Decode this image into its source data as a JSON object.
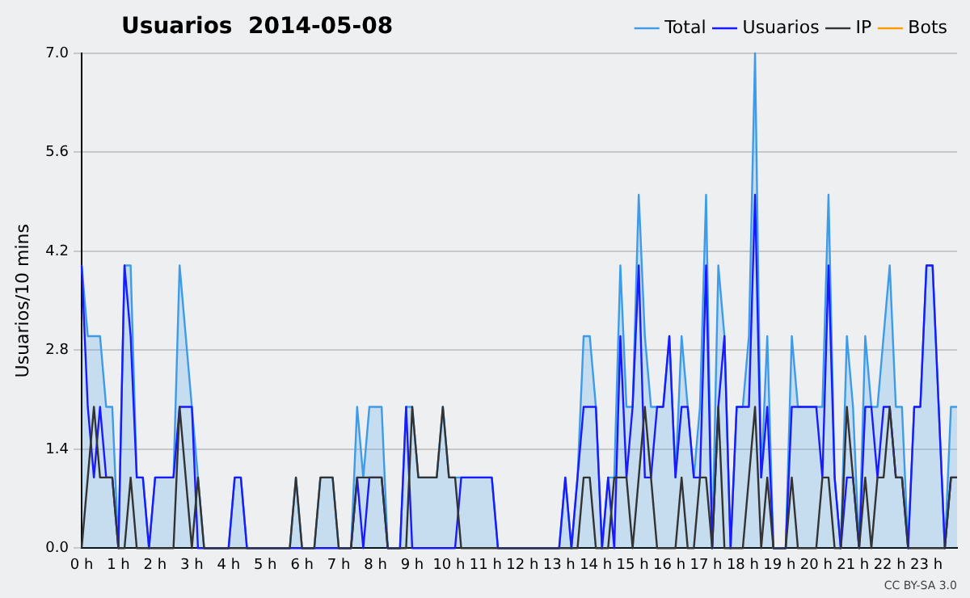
{
  "chart_data": {
    "type": "line",
    "title": "Usuarios  2014-05-08",
    "ylabel": "Usuarios/10 mins",
    "annotations": [
      "CC BY-SA 3.0"
    ],
    "categories": [
      "0 h",
      null,
      null,
      null,
      null,
      null,
      "1 h",
      null,
      null,
      null,
      null,
      null,
      "2 h",
      null,
      null,
      null,
      null,
      null,
      "3 h",
      null,
      null,
      null,
      null,
      null,
      "4 h",
      null,
      null,
      null,
      null,
      null,
      "5 h",
      null,
      null,
      null,
      null,
      null,
      "6 h",
      null,
      null,
      null,
      null,
      null,
      "7 h",
      null,
      null,
      null,
      null,
      null,
      "8 h",
      null,
      null,
      null,
      null,
      null,
      "9 h",
      null,
      null,
      null,
      null,
      null,
      "10 h",
      null,
      null,
      null,
      null,
      null,
      "11 h",
      null,
      null,
      null,
      null,
      null,
      "12 h",
      null,
      null,
      null,
      null,
      null,
      "13 h",
      null,
      null,
      null,
      null,
      null,
      "14 h",
      null,
      null,
      null,
      null,
      null,
      "15 h",
      null,
      null,
      null,
      null,
      null,
      "16 h",
      null,
      null,
      null,
      null,
      null,
      "17 h",
      null,
      null,
      null,
      null,
      null,
      "18 h",
      null,
      null,
      null,
      null,
      null,
      "19 h",
      null,
      null,
      null,
      null,
      null,
      "20 h",
      null,
      null,
      null,
      null,
      null,
      "21 h",
      null,
      null,
      null,
      null,
      null,
      "22 h",
      null,
      null,
      null,
      null,
      null,
      "23 h",
      null,
      null,
      null,
      null,
      null
    ],
    "series": [
      {
        "name": "Total",
        "type": "area",
        "color": "#3d9be9",
        "values": [
          4,
          3,
          3,
          3,
          2,
          2,
          0,
          4,
          4,
          1,
          1,
          0,
          1,
          1,
          1,
          1,
          4,
          3,
          2,
          1,
          0,
          0,
          0,
          0,
          0,
          1,
          1,
          0,
          0,
          0,
          0,
          0,
          0,
          0,
          0,
          1,
          0,
          0,
          0,
          1,
          1,
          1,
          0,
          0,
          0,
          2,
          1,
          2,
          2,
          2,
          0,
          0,
          0,
          2,
          2,
          1,
          1,
          1,
          1,
          2,
          1,
          1,
          1,
          1,
          1,
          1,
          1,
          1,
          0,
          0,
          0,
          0,
          0,
          0,
          0,
          0,
          0,
          0,
          0,
          1,
          0,
          1,
          3,
          3,
          2,
          0,
          1,
          1,
          4,
          2,
          2,
          5,
          3,
          2,
          2,
          2,
          3,
          1,
          3,
          2,
          1,
          2,
          5,
          0,
          4,
          3,
          0,
          2,
          2,
          3,
          7,
          1,
          3,
          0,
          0,
          0,
          3,
          2,
          2,
          2,
          2,
          2,
          5,
          1,
          0,
          3,
          2,
          0,
          3,
          2,
          2,
          3,
          4,
          2,
          2,
          0,
          2,
          2,
          4,
          4,
          2,
          0,
          2,
          2
        ]
      },
      {
        "name": "Usuarios",
        "type": "line",
        "color": "#1a1aff",
        "values": [
          4,
          2,
          1,
          2,
          1,
          1,
          0,
          4,
          3,
          1,
          1,
          0,
          1,
          1,
          1,
          1,
          2,
          2,
          2,
          0,
          0,
          0,
          0,
          0,
          0,
          1,
          1,
          0,
          0,
          0,
          0,
          0,
          0,
          0,
          0,
          0,
          0,
          0,
          0,
          0,
          0,
          0,
          0,
          0,
          0,
          1,
          0,
          1,
          1,
          1,
          0,
          0,
          0,
          2,
          0,
          0,
          0,
          0,
          0,
          0,
          0,
          0,
          1,
          1,
          1,
          1,
          1,
          1,
          0,
          0,
          0,
          0,
          0,
          0,
          0,
          0,
          0,
          0,
          0,
          1,
          0,
          1,
          2,
          2,
          2,
          0,
          1,
          0,
          3,
          1,
          2,
          4,
          1,
          1,
          2,
          2,
          3,
          1,
          2,
          2,
          1,
          1,
          4,
          0,
          2,
          3,
          0,
          2,
          2,
          2,
          5,
          1,
          2,
          0,
          0,
          0,
          2,
          2,
          2,
          2,
          2,
          1,
          4,
          1,
          0,
          1,
          1,
          0,
          2,
          2,
          1,
          2,
          2,
          1,
          1,
          0,
          2,
          2,
          4,
          4,
          2,
          0,
          1,
          1
        ]
      },
      {
        "name": "IP",
        "type": "line",
        "color": "#333333",
        "values": [
          0,
          1,
          2,
          1,
          1,
          1,
          0,
          0,
          1,
          0,
          0,
          0,
          0,
          0,
          0,
          0,
          2,
          1,
          0,
          1,
          0,
          0,
          0,
          0,
          0,
          0,
          0,
          0,
          0,
          0,
          0,
          0,
          0,
          0,
          0,
          1,
          0,
          0,
          0,
          1,
          1,
          1,
          0,
          0,
          0,
          1,
          1,
          1,
          1,
          1,
          0,
          0,
          0,
          0,
          2,
          1,
          1,
          1,
          1,
          2,
          1,
          1,
          0,
          0,
          0,
          0,
          0,
          0,
          0,
          0,
          0,
          0,
          0,
          0,
          0,
          0,
          0,
          0,
          0,
          0,
          0,
          0,
          1,
          1,
          0,
          0,
          0,
          1,
          1,
          1,
          0,
          1,
          2,
          1,
          0,
          0,
          0,
          0,
          1,
          0,
          0,
          1,
          1,
          0,
          2,
          0,
          0,
          0,
          0,
          1,
          2,
          0,
          1,
          0,
          0,
          0,
          1,
          0,
          0,
          0,
          0,
          1,
          1,
          0,
          0,
          2,
          1,
          0,
          1,
          0,
          1,
          1,
          2,
          1,
          1,
          0,
          0,
          0,
          0,
          0,
          0,
          0,
          1,
          1
        ]
      },
      {
        "name": "Bots",
        "type": "line",
        "color": "#ff9900",
        "values": [
          null,
          null,
          null,
          null,
          null,
          null,
          null,
          null,
          null,
          null,
          null,
          null,
          null,
          null,
          null,
          null,
          null,
          null,
          null,
          null,
          null,
          null,
          null,
          null,
          null,
          null,
          null,
          null,
          null,
          null,
          null,
          null,
          null,
          null,
          null,
          null,
          null,
          null,
          null,
          null,
          null,
          null,
          null,
          null,
          null,
          null,
          null,
          null,
          null,
          null,
          null,
          null,
          null,
          null,
          null,
          null,
          null,
          null,
          null,
          null,
          null,
          null,
          null,
          null,
          null,
          null,
          null,
          null,
          null,
          null,
          null,
          null,
          null,
          null,
          null,
          null,
          null,
          null,
          null,
          null,
          null,
          null,
          null,
          null,
          null,
          null,
          null,
          null,
          null,
          null,
          null,
          null,
          null,
          null,
          null,
          null,
          null,
          null,
          null,
          null,
          null,
          null,
          null,
          null,
          null,
          null,
          null,
          null,
          null,
          null,
          null,
          null,
          null,
          null,
          null,
          null,
          null,
          null,
          null,
          null,
          null,
          null,
          null,
          null,
          null,
          null,
          null,
          null,
          null,
          null,
          null,
          null,
          null,
          null,
          null,
          null,
          null,
          null,
          null,
          null,
          null,
          null,
          null,
          null
        ]
      }
    ],
    "ylim": [
      0,
      7
    ],
    "yticks": [
      {
        "value": 0,
        "label": "0.0"
      },
      {
        "value": 1.4,
        "label": "1.4"
      },
      {
        "value": 2.8,
        "label": "2.8"
      },
      {
        "value": 4.2,
        "label": "4.2"
      },
      {
        "value": 5.6,
        "label": "5.6"
      },
      {
        "value": 7,
        "label": "7.0"
      }
    ],
    "grid": "y",
    "legend": "top right",
    "marker": "none",
    "line_style": "solid"
  }
}
